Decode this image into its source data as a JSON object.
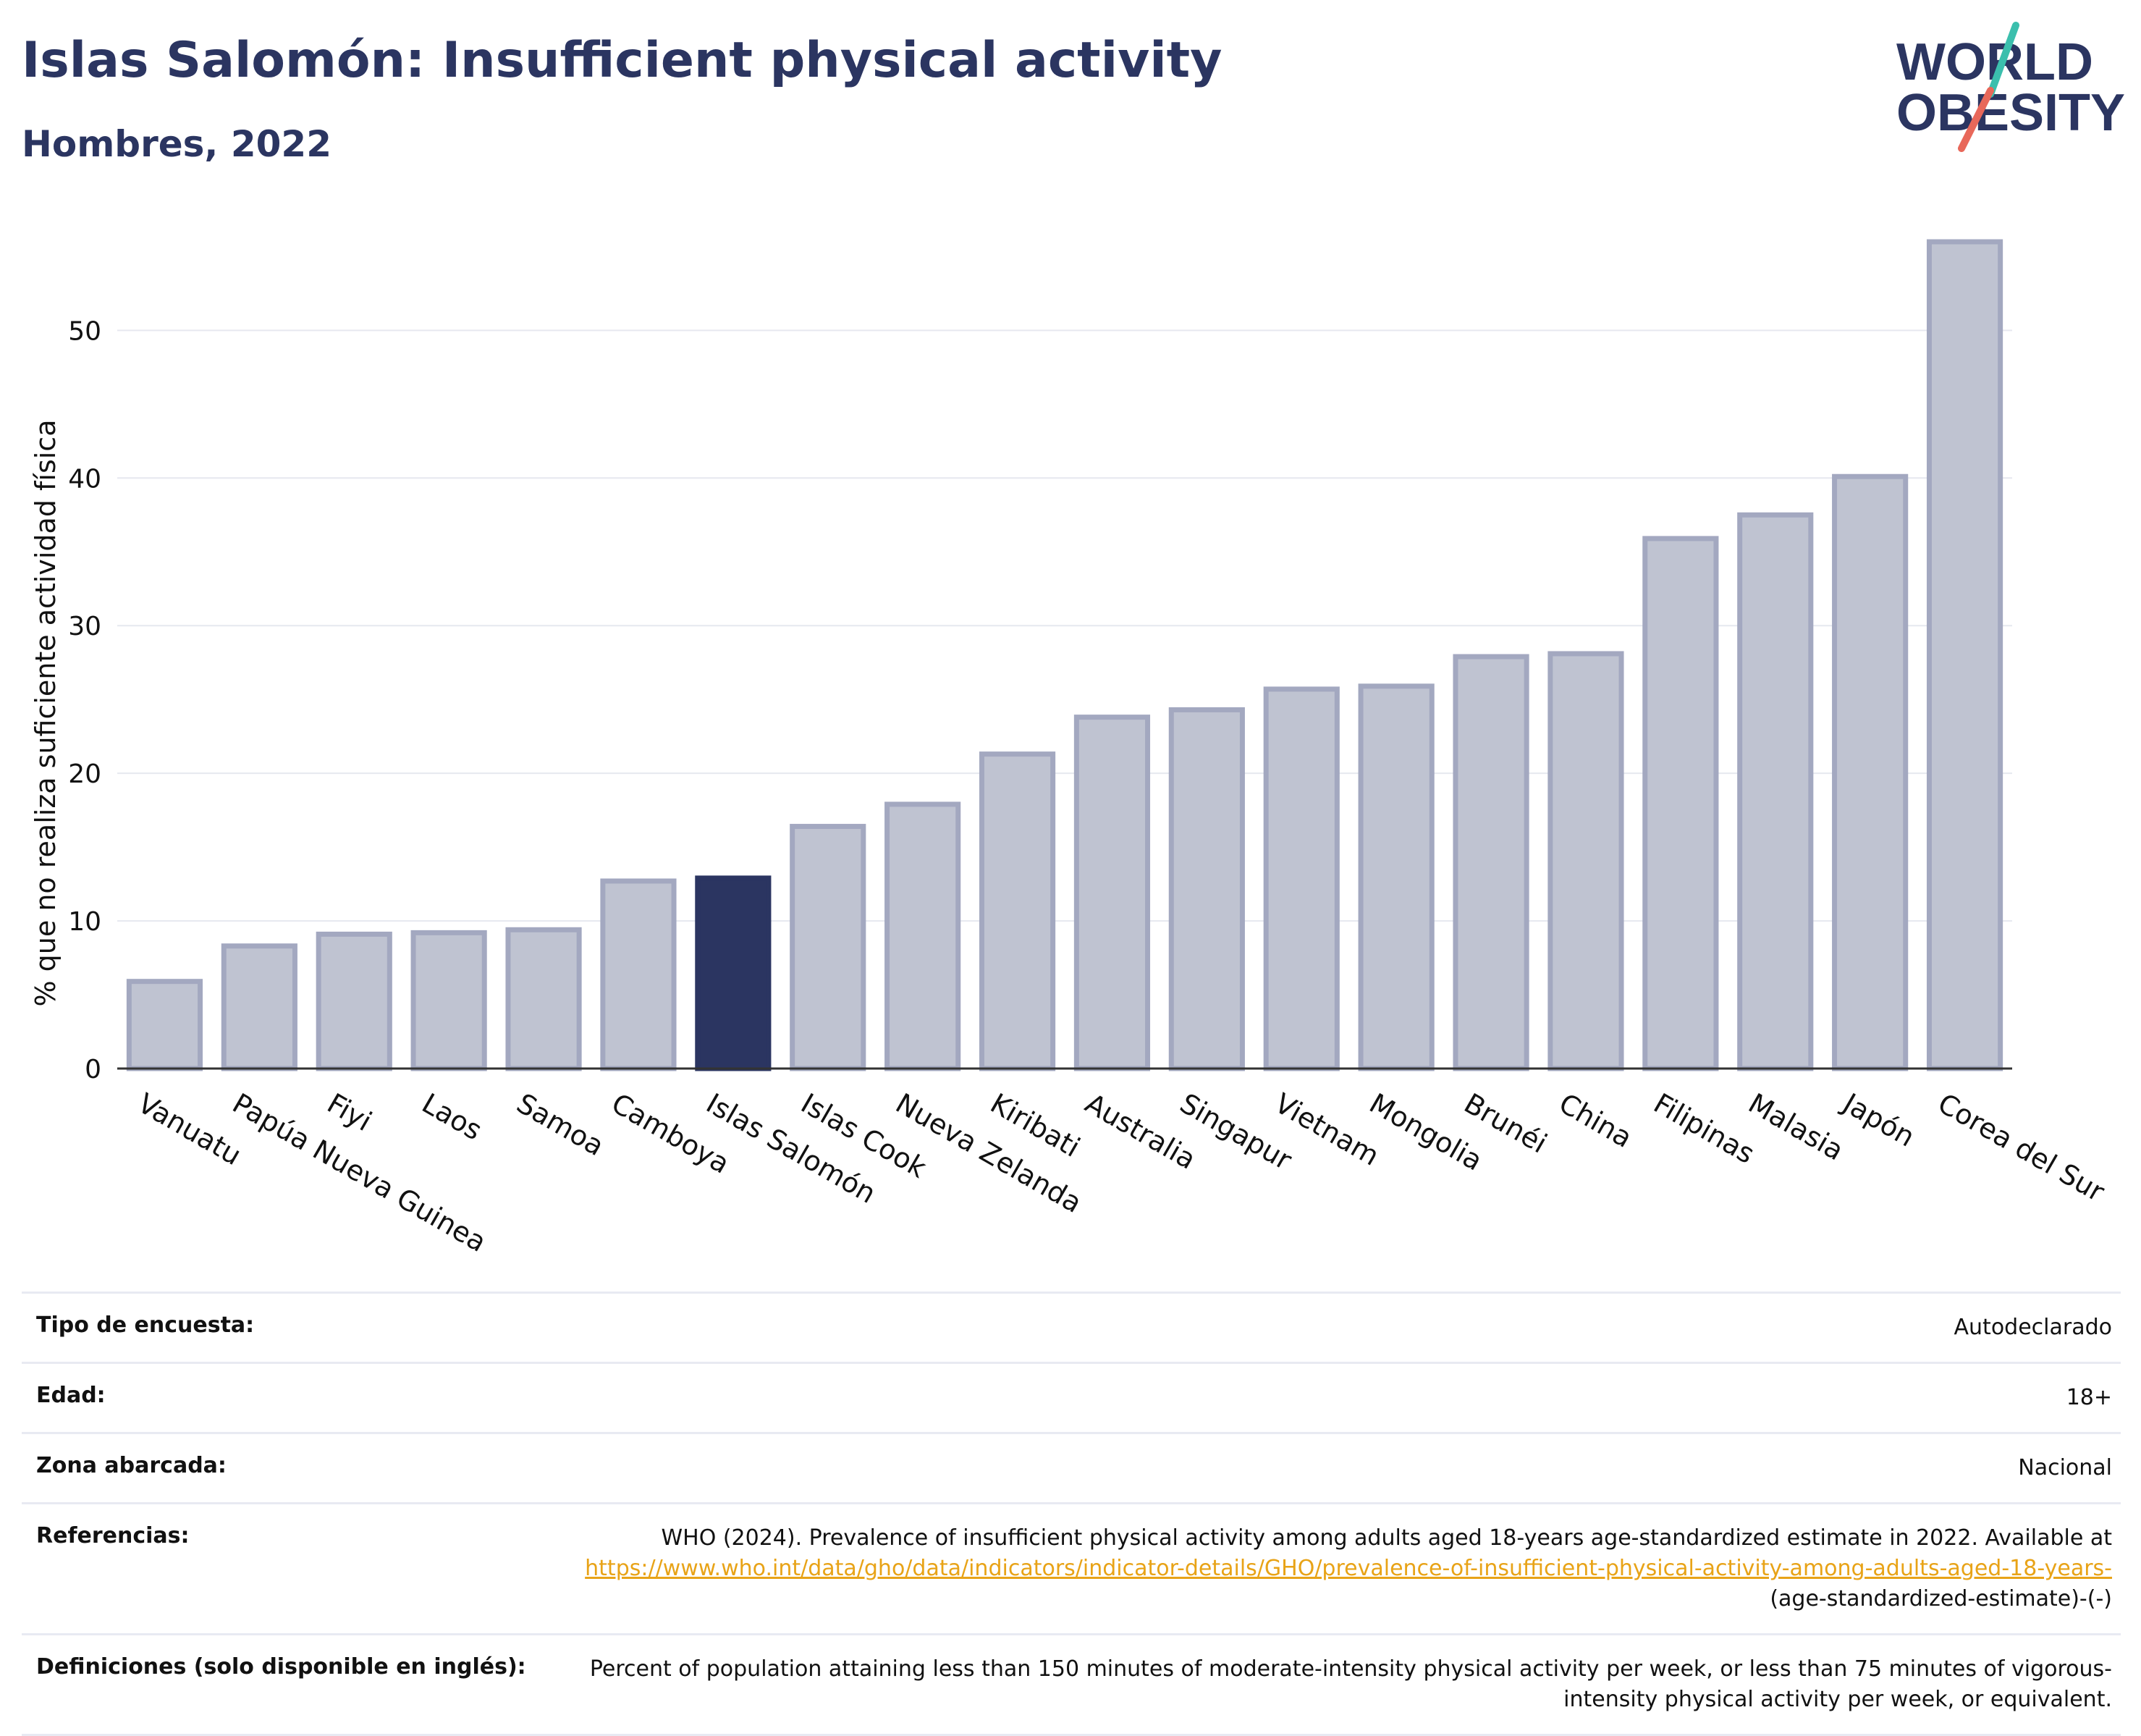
{
  "header": {
    "title": "Islas Salomón: Insufficient physical activity",
    "subtitle": "Hombres, 2022"
  },
  "logo": {
    "line1": "WORLD",
    "line2": "OBESITY",
    "colors": {
      "text": "#2b3561",
      "slash_teal": "#3bbfad",
      "slash_coral": "#e8685a"
    }
  },
  "colors": {
    "bar_fill": "#bfc3d1",
    "bar_stroke": "#a3a8c0",
    "highlight": "#2b3561",
    "grid": "#e6e8ef",
    "axis": "#333333"
  },
  "chart_data": {
    "type": "bar",
    "ylabel": "% que no realiza suficiente actividad física",
    "ylim": [
      0,
      56
    ],
    "yticks": [
      0,
      10,
      20,
      30,
      40,
      50
    ],
    "grid": true,
    "highlight": "Islas Salomón",
    "categories": [
      "Vanuatu",
      "Papúa Nueva Guinea",
      "Fiyi",
      "Laos",
      "Samoa",
      "Camboya",
      "Islas Salomón",
      "Islas Cook",
      "Nueva Zelanda",
      "Kiribati",
      "Australia",
      "Singapur",
      "Vietnam",
      "Mongolia",
      "Brunéi",
      "China",
      "Filipinas",
      "Malasia",
      "Japón",
      "Corea del Sur"
    ],
    "values": [
      5.9,
      8.3,
      9.1,
      9.2,
      9.4,
      12.7,
      12.9,
      16.4,
      17.9,
      21.3,
      23.8,
      24.3,
      25.7,
      25.9,
      27.9,
      28.1,
      35.9,
      37.5,
      40.1,
      56.0
    ]
  },
  "meta": {
    "survey_label": "Tipo de encuesta:",
    "survey_value": "Autodeclarado",
    "age_label": "Edad:",
    "age_value": "18+",
    "area_label": "Zona abarcada:",
    "area_value": "Nacional",
    "refs_label": "Referencias:",
    "refs_text": "WHO (2024). Prevalence of insufficient physical activity among adults aged 18-years age-standardized estimate in 2022. Available at",
    "refs_link": "https://www.who.int/data/gho/data/indicators/indicator-details/GHO/prevalence-of-insufficient-physical-activity-among-adults-aged-18-years-",
    "refs_suffix": "(age-standardized-estimate)-(-)",
    "defs_label": "Definiciones (solo disponible en inglés):",
    "defs_value": "Percent of population attaining less than 150 minutes of moderate-intensity physical activity per week, or less than 75 minutes of vigorous-intensity physical activity per week, or equivalent."
  }
}
